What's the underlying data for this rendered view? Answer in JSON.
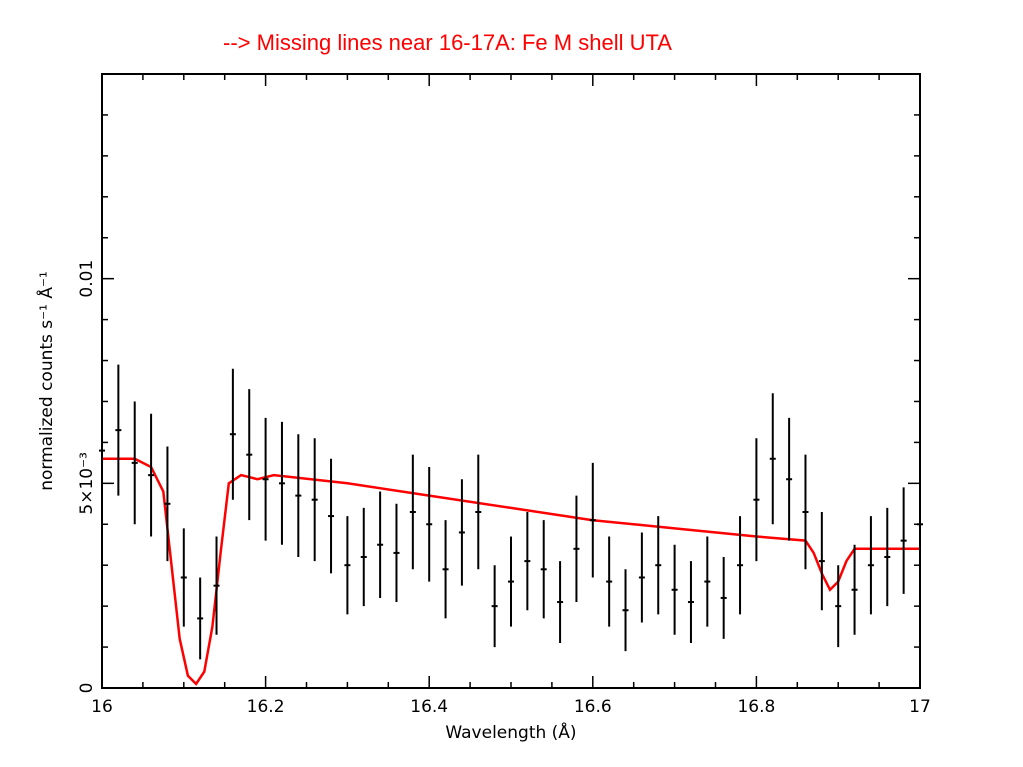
{
  "slide": {
    "title": "--> Missing lines near 16-17A:  Fe M shell UTA",
    "title_color": "#ff0000"
  },
  "chart_data": {
    "type": "line",
    "title": "",
    "xlabel": "Wavelength (Å)",
    "ylabel": "normalized counts s⁻¹ Å⁻¹",
    "xlim": [
      16.0,
      17.0
    ],
    "ylim": [
      0.0,
      0.015
    ],
    "x_ticks": [
      16.0,
      16.2,
      16.4,
      16.6,
      16.8,
      17.0
    ],
    "x_tick_labels": [
      "16",
      "16.2",
      "16.4",
      "16.6",
      "16.8",
      "17"
    ],
    "y_ticks": [
      0.0,
      0.005,
      0.01
    ],
    "y_tick_labels": [
      "0",
      "5×10⁻³",
      "0.01"
    ],
    "grid": false,
    "data_color": "#000000",
    "model_color": "#ff0000",
    "series": [
      {
        "kind": "model",
        "x": [
          16.0,
          16.04,
          16.06,
          16.075,
          16.085,
          16.095,
          16.105,
          16.115,
          16.125,
          16.135,
          16.145,
          16.155,
          16.17,
          16.19,
          16.21,
          16.3,
          16.4,
          16.5,
          16.6,
          16.7,
          16.8,
          16.86,
          16.87,
          16.88,
          16.89,
          16.9,
          16.91,
          16.92,
          16.95,
          17.0
        ],
        "y": [
          0.0056,
          0.0056,
          0.0054,
          0.0048,
          0.003,
          0.0012,
          0.0003,
          0.0001,
          0.0004,
          0.0015,
          0.0033,
          0.005,
          0.0052,
          0.0051,
          0.0052,
          0.005,
          0.0047,
          0.0044,
          0.0041,
          0.0039,
          0.0037,
          0.0036,
          0.0033,
          0.0028,
          0.0024,
          0.0026,
          0.0031,
          0.0034,
          0.0034,
          0.0034
        ]
      },
      {
        "kind": "data",
        "x": [
          16.0,
          16.02,
          16.04,
          16.06,
          16.08,
          16.1,
          16.12,
          16.14,
          16.16,
          16.18,
          16.2,
          16.22,
          16.24,
          16.26,
          16.28,
          16.3,
          16.32,
          16.34,
          16.36,
          16.38,
          16.4,
          16.42,
          16.44,
          16.46,
          16.48,
          16.5,
          16.52,
          16.54,
          16.56,
          16.58,
          16.6,
          16.62,
          16.64,
          16.66,
          16.68,
          16.7,
          16.72,
          16.74,
          16.76,
          16.78,
          16.8,
          16.82,
          16.84,
          16.86,
          16.88,
          16.9,
          16.92,
          16.94,
          16.96,
          16.98,
          17.0
        ],
        "y": [
          0.0058,
          0.0063,
          0.0055,
          0.0052,
          0.0045,
          0.0027,
          0.0017,
          0.0025,
          0.0062,
          0.0057,
          0.0051,
          0.005,
          0.0047,
          0.0046,
          0.0042,
          0.003,
          0.0032,
          0.0035,
          0.0033,
          0.0043,
          0.004,
          0.0029,
          0.0038,
          0.0043,
          0.002,
          0.0026,
          0.0031,
          0.0029,
          0.0021,
          0.0034,
          0.0041,
          0.0026,
          0.0019,
          0.0027,
          0.003,
          0.0024,
          0.0021,
          0.0026,
          0.0022,
          0.003,
          0.0046,
          0.0056,
          0.0051,
          0.0043,
          0.0031,
          0.002,
          0.0024,
          0.003,
          0.0032,
          0.0036,
          0.004
        ],
        "err": [
          0.0015,
          0.0016,
          0.0015,
          0.0015,
          0.0014,
          0.0012,
          0.001,
          0.0012,
          0.0016,
          0.0016,
          0.0015,
          0.0015,
          0.0015,
          0.0015,
          0.0014,
          0.0012,
          0.0012,
          0.0013,
          0.0012,
          0.0014,
          0.0014,
          0.0012,
          0.0013,
          0.0014,
          0.001,
          0.0011,
          0.0012,
          0.0012,
          0.001,
          0.0013,
          0.0014,
          0.0011,
          0.001,
          0.0011,
          0.0012,
          0.0011,
          0.001,
          0.0011,
          0.001,
          0.0012,
          0.0015,
          0.0016,
          0.0015,
          0.0014,
          0.0012,
          0.001,
          0.0011,
          0.0012,
          0.0012,
          0.0013,
          0.0014
        ]
      }
    ]
  }
}
